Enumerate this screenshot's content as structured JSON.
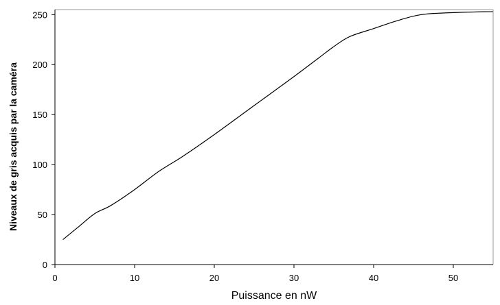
{
  "chart_data": {
    "type": "line",
    "title": "",
    "xlabel": "Puissance en nW",
    "ylabel": "Niveaux de gris acquis par la caméra",
    "xlim": [
      0,
      55
    ],
    "ylim": [
      0,
      255
    ],
    "x_ticks": [
      0,
      10,
      20,
      30,
      40,
      50
    ],
    "y_ticks": [
      0,
      50,
      100,
      150,
      200,
      250
    ],
    "grid": false,
    "legend": "none",
    "series": [
      {
        "color": "#000000",
        "x": [
          1,
          3,
          5,
          7,
          10,
          13,
          16,
          20,
          25,
          30,
          33,
          35,
          37,
          40,
          43,
          46,
          50,
          55
        ],
        "y": [
          25,
          38,
          51,
          59,
          75,
          93,
          108,
          130,
          159,
          188,
          206,
          218,
          228,
          236,
          244,
          250,
          252,
          253
        ]
      }
    ]
  }
}
